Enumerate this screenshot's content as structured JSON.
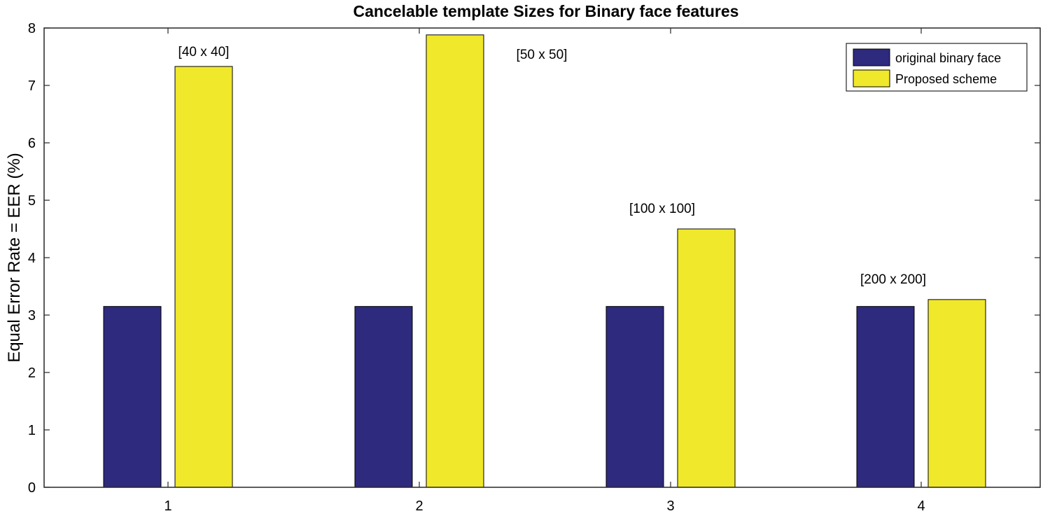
{
  "chart_data": {
    "type": "bar",
    "title": "Cancelable template Sizes for Binary face features",
    "xlabel": "",
    "ylabel": "Equal Error Rate = EER (%)",
    "categories": [
      "1",
      "2",
      "3",
      "4"
    ],
    "ylim": [
      0,
      8
    ],
    "yticks": [
      "0",
      "1",
      "2",
      "3",
      "4",
      "5",
      "6",
      "7",
      "8"
    ],
    "grid": false,
    "legend_position": "top-right",
    "series": [
      {
        "name": "original binary face",
        "color": "#2e2a7e",
        "values": [
          3.15,
          3.15,
          3.15,
          3.15
        ]
      },
      {
        "name": "Proposed scheme",
        "color": "#f0e82a",
        "values": [
          7.33,
          7.88,
          4.5,
          3.27
        ]
      }
    ],
    "annotations": [
      "[40 x 40]",
      "[50 x 50]",
      "[100 x 100]",
      "[200 x 200]"
    ]
  }
}
